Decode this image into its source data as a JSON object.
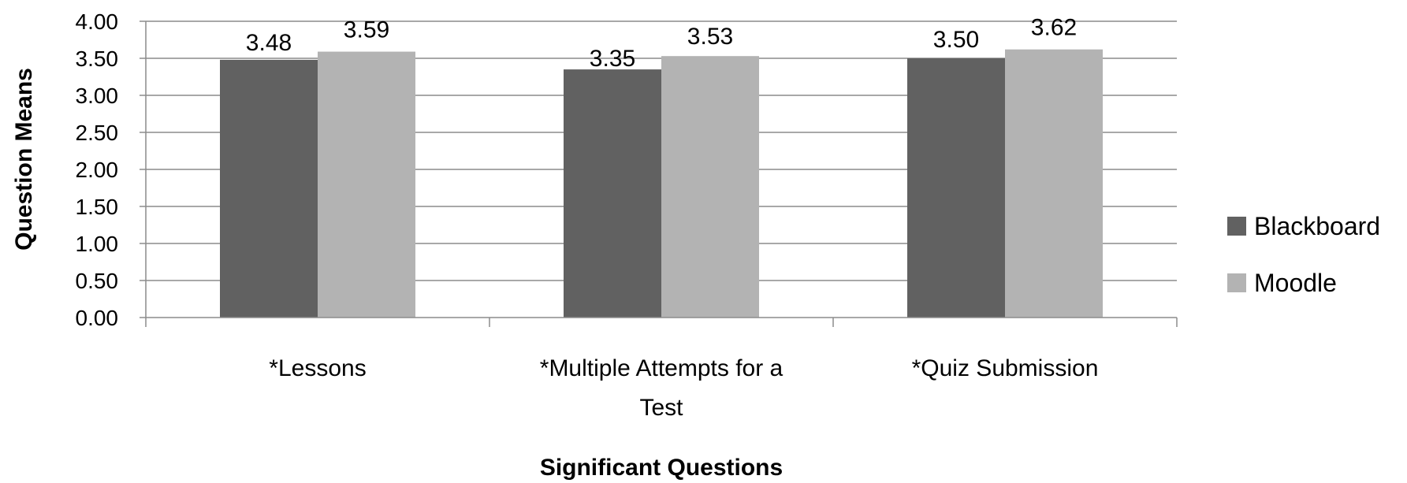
{
  "chart_data": {
    "type": "bar",
    "categories": [
      "*Lessons",
      "*Multiple Attempts for a Test",
      "*Quiz Submission"
    ],
    "category_lines": [
      [
        "*Lessons"
      ],
      [
        "*Multiple Attempts for a",
        "Test"
      ],
      [
        "*Quiz Submission"
      ]
    ],
    "series": [
      {
        "name": "Blackboard",
        "values": [
          3.48,
          3.35,
          3.5
        ],
        "color": "#616161",
        "labels": [
          "3.48",
          "3.35",
          "3.50"
        ]
      },
      {
        "name": "Moodle",
        "values": [
          3.59,
          3.53,
          3.62
        ],
        "color": "#b3b3b3",
        "labels": [
          "3.59",
          "3.53",
          "3.62"
        ]
      }
    ],
    "xlabel": "Significant Questions",
    "ylabel": "Question Means",
    "ylim": [
      0,
      4
    ],
    "yticks": [
      "0.00",
      "0.50",
      "1.00",
      "1.50",
      "2.00",
      "2.50",
      "3.00",
      "3.50",
      "4.00"
    ],
    "grid": true,
    "legend_position": "right",
    "gridline_color": "#8c8c8c"
  }
}
